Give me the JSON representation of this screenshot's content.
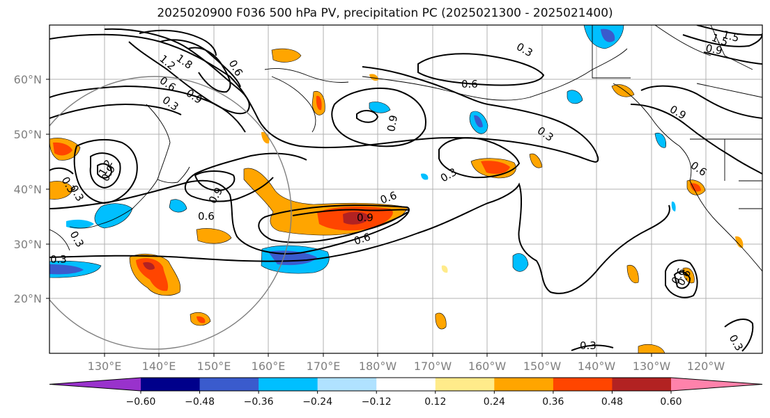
{
  "title": "2025020900 F036 500 hPa PV, precipitation PC (2025021300 - 2025021400)",
  "lat_labels": [
    "60°N",
    "50°N",
    "40°N",
    "30°N",
    "20°N"
  ],
  "lon_labels": [
    "130°E",
    "140°E",
    "150°E",
    "160°E",
    "170°E",
    "180°W",
    "170°W",
    "160°W",
    "150°W",
    "140°W",
    "130°W",
    "120°W"
  ],
  "colorbar": {
    "ticks": [
      "−0.60",
      "−0.48",
      "−0.36",
      "−0.24",
      "−0.12",
      "0.12",
      "0.24",
      "0.36",
      "0.48",
      "0.60"
    ],
    "colors": [
      "#9932cc",
      "#00008b",
      "#3a5bcd",
      "#00bfff",
      "#b0e2ff",
      "#ffffff",
      "#ffeb8a",
      "#ffa500",
      "#ff4500",
      "#b22222",
      "#ff82ab"
    ]
  },
  "contour_labels": [
    "1.8",
    "1.5",
    "1.2",
    "0.9",
    "0.6",
    "0.3",
    "0.3",
    "0.6",
    "0.9",
    "0.3",
    "0.3",
    "0.6",
    "0.3",
    "1.2",
    "0.9",
    "0.6",
    "0.3",
    "0.6",
    "0.9",
    "0.6",
    "0.9",
    "0.6",
    "0.3",
    "0.3",
    "0.9",
    "0.6",
    "0.3",
    "1.5",
    "0.9",
    "0.3",
    "0.6"
  ]
}
